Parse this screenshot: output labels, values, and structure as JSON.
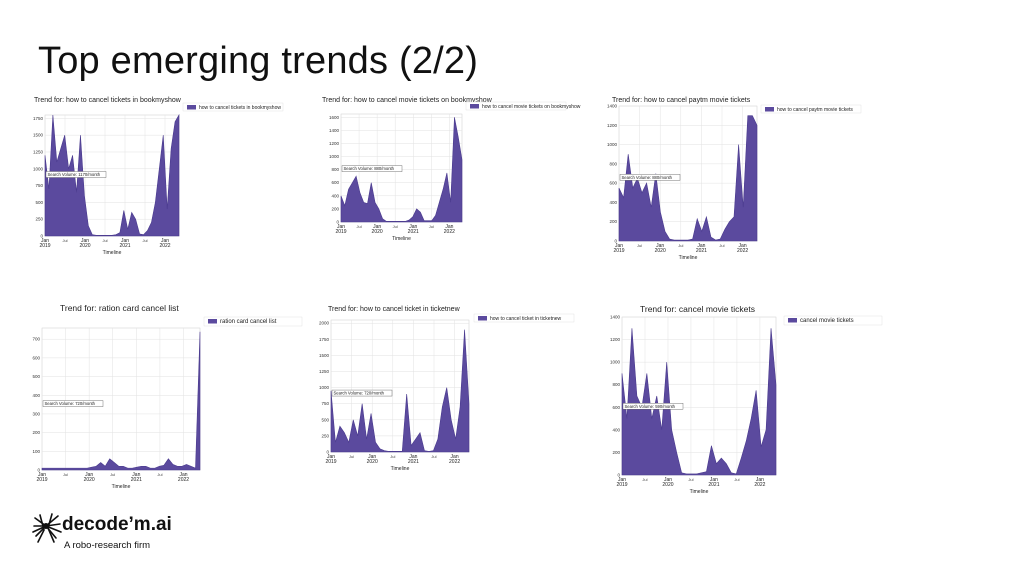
{
  "slide": {
    "title": "Top emerging trends (2/2)"
  },
  "brand": {
    "name": "decode’m.ai",
    "tagline": "A robo-research firm"
  },
  "colors": {
    "fill": "#5b4a9e",
    "stroke": "#4a3a8e",
    "grid": "#e2e2e2"
  },
  "chart_data": [
    {
      "type": "area",
      "title": "Trend for: how to cancel tickets in bookmyshow",
      "legend": "how to cancel tickets in bookmyshow",
      "annotation": "Search Volume: 1170/month",
      "xlabel": "Timeline",
      "yticks": [
        0,
        250,
        500,
        750,
        1000,
        1250,
        1500,
        1750
      ],
      "ylim": [
        0,
        1800
      ],
      "x_tick_labels": [
        [
          "Jan",
          "2019"
        ],
        [
          "Jul",
          ""
        ],
        [
          "Jan",
          "2020"
        ],
        [
          "Jul",
          ""
        ],
        [
          "Jan",
          "2021"
        ],
        [
          "Jul",
          ""
        ],
        [
          "Jan",
          "2022"
        ]
      ],
      "annotation_y": 900,
      "values": [
        1200,
        700,
        1800,
        1100,
        1300,
        1500,
        1000,
        1200,
        650,
        1500,
        600,
        150,
        20,
        10,
        10,
        10,
        10,
        10,
        20,
        50,
        380,
        100,
        350,
        250,
        30,
        20,
        80,
        200,
        500,
        1000,
        1500,
        400,
        1300,
        1700,
        1800
      ]
    },
    {
      "type": "area",
      "title": "Trend for: how to cancel movie tickets on bookmyshow",
      "legend": "how to cancel movie tickets on bookmyshow",
      "annotation": "Search Volume: 880/month",
      "xlabel": "Timeline",
      "yticks": [
        0,
        200,
        400,
        600,
        800,
        1000,
        1200,
        1400,
        1600
      ],
      "ylim": [
        0,
        1650
      ],
      "x_tick_labels": [
        [
          "Jan",
          "2019"
        ],
        [
          "Jul",
          ""
        ],
        [
          "Jan",
          "2020"
        ],
        [
          "Jul",
          ""
        ],
        [
          "Jan",
          "2021"
        ],
        [
          "Jul",
          ""
        ],
        [
          "Jan",
          "2022"
        ]
      ],
      "annotation_y": 800,
      "values": [
        400,
        250,
        500,
        600,
        700,
        450,
        300,
        280,
        600,
        300,
        200,
        50,
        10,
        10,
        10,
        10,
        10,
        10,
        30,
        80,
        200,
        150,
        20,
        20,
        20,
        100,
        300,
        500,
        750,
        300,
        1600,
        1300,
        950
      ]
    },
    {
      "type": "area",
      "title": "Trend for: how to cancel paytm movie tickets",
      "legend": "how to cancel paytm movie tickets",
      "annotation": "Search Volume: 880/month",
      "xlabel": "Timeline",
      "yticks": [
        0,
        200,
        400,
        600,
        800,
        1000,
        1200,
        1400
      ],
      "ylim": [
        0,
        1400
      ],
      "x_tick_labels": [
        [
          "Jan",
          "2019"
        ],
        [
          "Jul",
          ""
        ],
        [
          "Jan",
          "2020"
        ],
        [
          "Jul",
          ""
        ],
        [
          "Jan",
          "2021"
        ],
        [
          "Jul",
          ""
        ],
        [
          "Jan",
          "2022"
        ]
      ],
      "annotation_y": 650,
      "values": [
        550,
        450,
        900,
        550,
        650,
        500,
        600,
        350,
        700,
        300,
        100,
        20,
        10,
        10,
        10,
        10,
        20,
        230,
        100,
        250,
        40,
        10,
        20,
        120,
        200,
        250,
        1000,
        350,
        1300,
        1300,
        1200
      ]
    },
    {
      "type": "area",
      "title": "Trend for: ration card cancel list",
      "legend": "ration card cancel list",
      "annotation": "Search Volume: 720/month",
      "xlabel": "Timeline",
      "yticks": [
        0,
        100,
        200,
        300,
        400,
        500,
        600,
        700
      ],
      "ylim": [
        0,
        760
      ],
      "x_tick_labels": [
        [
          "Jan",
          "2019"
        ],
        [
          "Jul",
          ""
        ],
        [
          "Jan",
          "2020"
        ],
        [
          "Jul",
          ""
        ],
        [
          "Jan",
          "2021"
        ],
        [
          "Jul",
          ""
        ],
        [
          "Jan",
          "2022"
        ]
      ],
      "annotation_y": 350,
      "values": [
        10,
        10,
        10,
        10,
        10,
        10,
        10,
        10,
        10,
        10,
        10,
        15,
        20,
        40,
        20,
        60,
        40,
        20,
        20,
        10,
        10,
        15,
        20,
        20,
        10,
        10,
        20,
        25,
        60,
        30,
        20,
        20,
        30,
        20,
        10,
        740
      ]
    },
    {
      "type": "area",
      "title": "Trend for: how to cancel ticket in ticketnew",
      "legend": "how to cancel ticket in ticketnew",
      "annotation": "Search Volume: 720/month",
      "xlabel": "Timeline",
      "yticks": [
        0,
        250,
        500,
        750,
        1000,
        1250,
        1500,
        1750,
        2000
      ],
      "ylim": [
        0,
        2050
      ],
      "x_tick_labels": [
        [
          "Jan",
          "2019"
        ],
        [
          "Jul",
          ""
        ],
        [
          "Jan",
          "2020"
        ],
        [
          "Jul",
          ""
        ],
        [
          "Jan",
          "2021"
        ],
        [
          "Jul",
          ""
        ],
        [
          "Jan",
          "2022"
        ]
      ],
      "annotation_y": 900,
      "values": [
        950,
        150,
        400,
        300,
        150,
        500,
        250,
        750,
        200,
        600,
        150,
        50,
        20,
        10,
        10,
        10,
        10,
        900,
        100,
        200,
        300,
        20,
        10,
        20,
        200,
        700,
        1000,
        500,
        200,
        700,
        1900,
        750
      ]
    },
    {
      "type": "area",
      "title": "Trend for: cancel movie tickets",
      "legend": "cancel movie tickets",
      "annotation": "Search Volume: 590/month",
      "xlabel": "Timeline",
      "yticks": [
        0,
        200,
        400,
        600,
        800,
        1000,
        1200,
        1400
      ],
      "ylim": [
        0,
        1400
      ],
      "x_tick_labels": [
        [
          "Jan",
          "2019"
        ],
        [
          "Jul",
          ""
        ],
        [
          "Jan",
          "2020"
        ],
        [
          "Jul",
          ""
        ],
        [
          "Jan",
          "2021"
        ],
        [
          "Jul",
          ""
        ],
        [
          "Jan",
          "2022"
        ]
      ],
      "annotation_y": 600,
      "values": [
        900,
        500,
        1300,
        700,
        600,
        900,
        500,
        700,
        400,
        1000,
        400,
        200,
        20,
        10,
        10,
        10,
        20,
        30,
        260,
        100,
        150,
        100,
        20,
        10,
        150,
        300,
        500,
        750,
        250,
        400,
        1300,
        800
      ]
    }
  ]
}
